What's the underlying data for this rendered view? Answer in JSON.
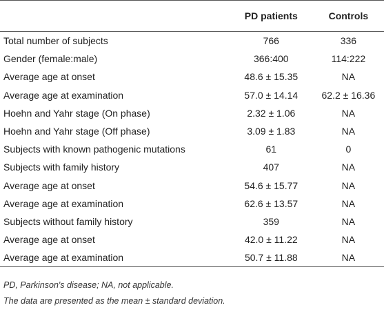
{
  "table": {
    "columns": [
      "PD patients",
      "Controls"
    ],
    "rows": [
      [
        "Total number of subjects",
        "766",
        "336"
      ],
      [
        "Gender (female:male)",
        "366:400",
        "114:222"
      ],
      [
        "Average age at onset",
        "48.6 ± 15.35",
        "NA"
      ],
      [
        "Average age at examination",
        "57.0 ± 14.14",
        "62.2 ± 16.36"
      ],
      [
        "Hoehn and Yahr stage (On phase)",
        "2.32 ± 1.06",
        "NA"
      ],
      [
        "Hoehn and Yahr stage (Off phase)",
        "3.09 ± 1.83",
        "NA"
      ],
      [
        "Subjects with known pathogenic mutations",
        "61",
        "0"
      ],
      [
        "Subjects with family history",
        "407",
        "NA"
      ],
      [
        "Average age at onset",
        "54.6 ± 15.77",
        "NA"
      ],
      [
        "Average age at examination",
        "62.6 ± 13.57",
        "NA"
      ],
      [
        "Subjects without family history",
        "359",
        "NA"
      ],
      [
        "Average age at onset",
        "42.0 ± 11.22",
        "NA"
      ],
      [
        "Average age at examination",
        "50.7 ± 11.88",
        "NA"
      ]
    ]
  },
  "footnotes": [
    "PD, Parkinson's disease; NA, not applicable.",
    "The data are presented as the mean ± standard deviation."
  ]
}
